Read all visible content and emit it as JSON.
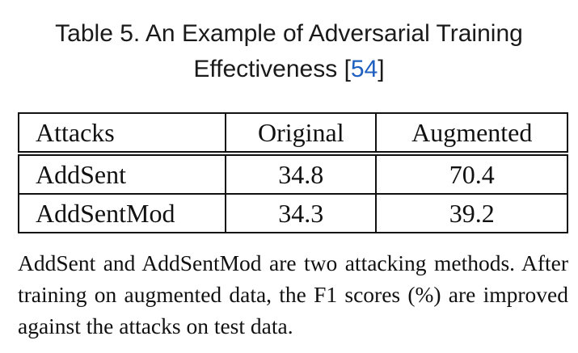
{
  "caption": {
    "line1": "Table 5.  An Example of Adversarial Training",
    "line2_prefix": "Effectiveness [",
    "citation": "54",
    "line2_suffix": "]"
  },
  "table": {
    "headers": [
      "Attacks",
      "Original",
      "Augmented"
    ],
    "rows": [
      [
        "AddSent",
        "34.8",
        "70.4"
      ],
      [
        "AddSentMod",
        "34.3",
        "39.2"
      ]
    ]
  },
  "note": "AddSent and AddSentMod are two attacking methods. After training on augmented data, the F1 scores (%) are improved against the attacks on test data."
}
